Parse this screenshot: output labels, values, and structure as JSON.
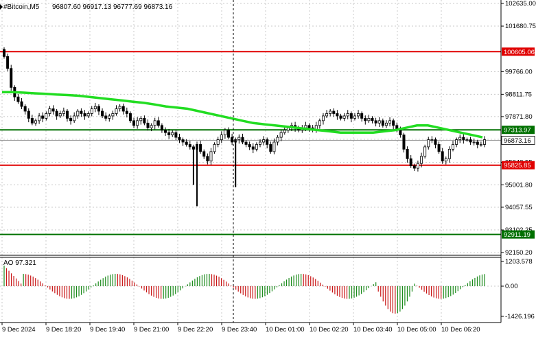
{
  "header": {
    "symbol": "#Bitcoin,M5",
    "ohlc": "96807.60 96917.13 96777.69 96873.16"
  },
  "price_axis": {
    "ticks": [
      "102635.00",
      "101680.75",
      "99766.00",
      "98811.75",
      "97871.80",
      "96917.55",
      "95948.55",
      "95001.80",
      "94057.55",
      "93102.25",
      "92150.20"
    ],
    "max": 102635.0,
    "min": 92150.2
  },
  "levels": [
    {
      "name": "resistance-high",
      "value": 100605.06,
      "label": "100605.06",
      "color": "#e00000"
    },
    {
      "name": "green-upper",
      "value": 97313.97,
      "label": "97313.97",
      "color": "#007000"
    },
    {
      "name": "current-price",
      "value": 96873.16,
      "label": "96873.16",
      "color": "#000000"
    },
    {
      "name": "support-red",
      "value": 95825.85,
      "label": "95825.85",
      "color": "#e00000"
    },
    {
      "name": "green-lower",
      "value": 92911.19,
      "label": "92911.19",
      "color": "#007000"
    }
  ],
  "indicator": {
    "title": "AO 97.321",
    "ticks": [
      "1203.578",
      "0.00",
      "-1426.196"
    ],
    "max": 1203.578,
    "min": -1426.196
  },
  "time_axis": {
    "labels": [
      "9 Dec 2024",
      "9 Dec 18:20",
      "9 Dec 19:40",
      "9 Dec 21:00",
      "9 Dec 22:20",
      "9 Dec 23:40",
      "10 Dec 01:00",
      "10 Dec 02:20",
      "10 Dec 03:40",
      "10 Dec 05:00",
      "10 Dec 06:20"
    ]
  },
  "colors": {
    "ma": "#22dd22",
    "ao_up": "#1a8a1a",
    "ao_down": "#c81414",
    "candle": "#000000",
    "grid": "#c8c8c8"
  },
  "chart_data": {
    "type": "candlestick",
    "close_series": [
      100400,
      99900,
      99100,
      98700,
      98500,
      98300,
      98100,
      97800,
      97600,
      97700,
      97900,
      97800,
      98000,
      98200,
      98100,
      97900,
      98000,
      98100,
      97800,
      97700,
      97900,
      98100,
      98000,
      97900,
      98000,
      98200,
      98300,
      98100,
      97900,
      97800,
      97900,
      98000,
      98200,
      98300,
      98100,
      98000,
      97700,
      97500,
      97700,
      97800,
      97600,
      97400,
      97500,
      97700,
      97500,
      97300,
      97200,
      97100,
      97200,
      97000,
      96900,
      96800,
      96700,
      96600,
      96500,
      96700,
      96400,
      96200,
      96000,
      96400,
      96700,
      96900,
      97100,
      97300,
      97000,
      96800,
      96900,
      97000,
      96800,
      96700,
      96600,
      96500,
      96700,
      96800,
      96900,
      96700,
      96400,
      96800,
      97000,
      97200,
      97300,
      97400,
      97500,
      97400,
      97300,
      97400,
      97500,
      97400,
      97300,
      97500,
      97700,
      97900,
      98000,
      98100,
      98000,
      97900,
      97800,
      97900,
      98000,
      97800,
      97900,
      98000,
      97800,
      97700,
      97800,
      97700,
      97600,
      97700,
      97500,
      97600,
      97700,
      97500,
      97300,
      97100,
      96500,
      96100,
      95800,
      95700,
      95900,
      96200,
      96600,
      96900,
      96900,
      96700,
      96400,
      96000,
      96100,
      96500,
      96700,
      96900,
      97000,
      96900,
      96900,
      96800,
      96800,
      96700,
      96700,
      96900
    ],
    "ma_series": [
      98900,
      98900,
      98880,
      98850,
      98830,
      98800,
      98780,
      98750,
      98700,
      98650,
      98600,
      98550,
      98500,
      98450,
      98380,
      98300,
      98250,
      98200,
      98100,
      98000,
      97900,
      97800,
      97700,
      97600,
      97550,
      97500,
      97450,
      97400,
      97350,
      97300,
      97250,
      97200,
      97200,
      97200,
      97200,
      97250,
      97300,
      97400,
      97500,
      97500,
      97400,
      97300,
      97200,
      97100,
      97000
    ],
    "wicks": [
      {
        "x_index": 54,
        "low": 95000
      },
      {
        "x_index": 55,
        "low": 94100
      },
      {
        "x_index": 66,
        "low": 94900
      }
    ]
  }
}
